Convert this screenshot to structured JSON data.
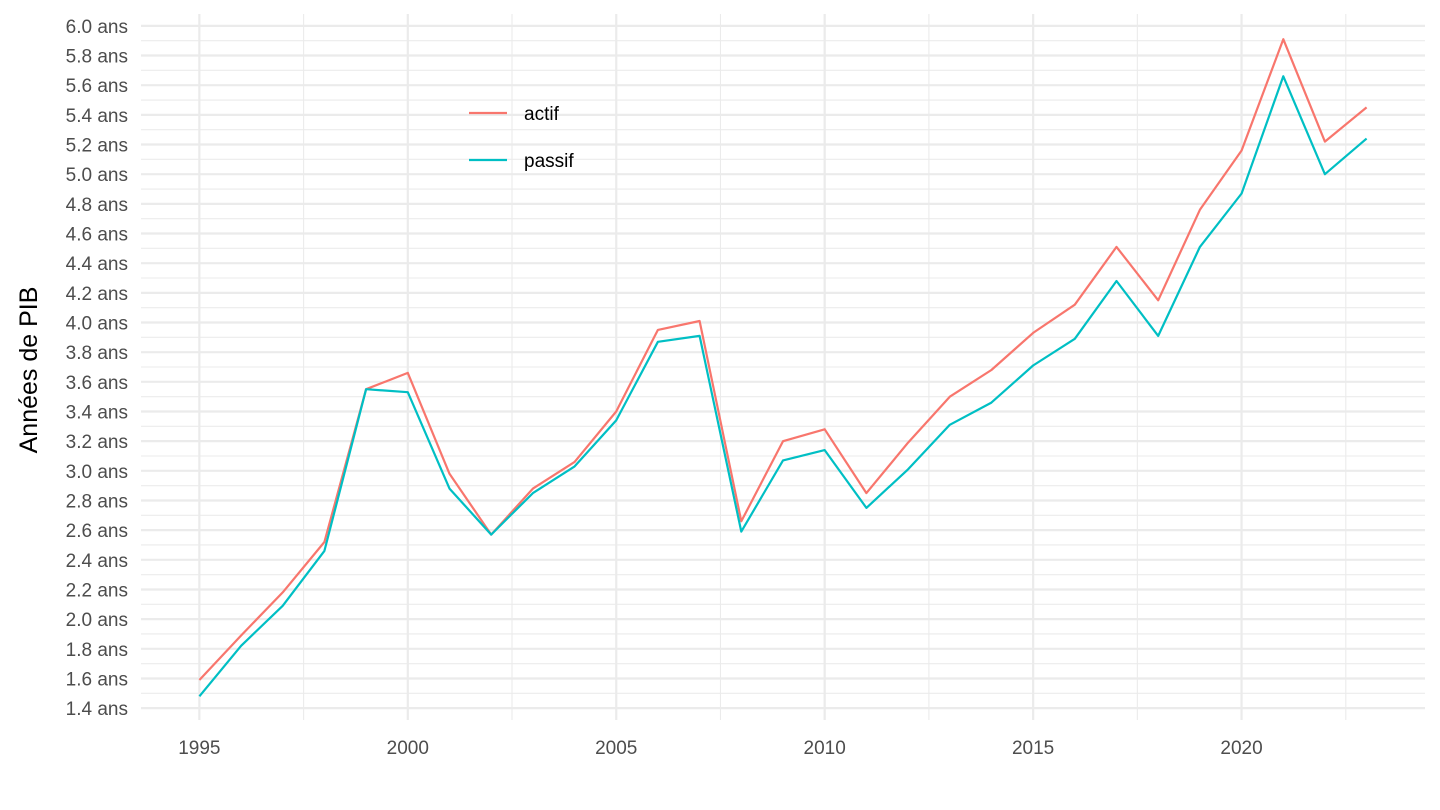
{
  "chart_data": {
    "type": "line",
    "ylabel": "Années de PIB",
    "xlabel": "",
    "x": [
      1995,
      1996,
      1997,
      1998,
      1999,
      2000,
      2001,
      2002,
      2003,
      2004,
      2005,
      2006,
      2007,
      2008,
      2009,
      2010,
      2011,
      2012,
      2013,
      2014,
      2015,
      2016,
      2017,
      2018,
      2019,
      2020,
      2021,
      2022,
      2023
    ],
    "series": [
      {
        "name": "actif",
        "color": "#F8766D",
        "values": [
          1.59,
          1.89,
          2.18,
          2.52,
          3.55,
          3.66,
          2.98,
          2.57,
          2.88,
          3.06,
          3.4,
          3.95,
          4.01,
          2.66,
          3.2,
          3.28,
          2.85,
          3.19,
          3.5,
          3.68,
          3.93,
          4.12,
          4.51,
          4.15,
          4.76,
          5.16,
          5.91,
          5.22,
          5.45
        ]
      },
      {
        "name": "passif",
        "color": "#00BFC4",
        "values": [
          1.48,
          1.82,
          2.09,
          2.46,
          3.55,
          3.53,
          2.88,
          2.57,
          2.85,
          3.03,
          3.34,
          3.87,
          3.91,
          2.59,
          3.07,
          3.14,
          2.75,
          3.01,
          3.31,
          3.46,
          3.71,
          3.89,
          4.28,
          3.91,
          4.51,
          4.87,
          5.66,
          5.0,
          5.24
        ]
      }
    ],
    "xlim": [
      1993.6,
      2024.4
    ],
    "ylim": [
      1.32,
      6.08
    ],
    "x_ticks": [
      {
        "value": 1995,
        "label": "1995"
      },
      {
        "value": 2000,
        "label": "2000"
      },
      {
        "value": 2005,
        "label": "2005"
      },
      {
        "value": 2010,
        "label": "2010"
      },
      {
        "value": 2015,
        "label": "2015"
      },
      {
        "value": 2020,
        "label": "2020"
      }
    ],
    "y_ticks": [
      {
        "value": 1.4,
        "label": "1.4 ans"
      },
      {
        "value": 1.6,
        "label": "1.6 ans"
      },
      {
        "value": 1.8,
        "label": "1.8 ans"
      },
      {
        "value": 2.0,
        "label": "2.0 ans"
      },
      {
        "value": 2.2,
        "label": "2.2 ans"
      },
      {
        "value": 2.4,
        "label": "2.4 ans"
      },
      {
        "value": 2.6,
        "label": "2.6 ans"
      },
      {
        "value": 2.8,
        "label": "2.8 ans"
      },
      {
        "value": 3.0,
        "label": "3.0 ans"
      },
      {
        "value": 3.2,
        "label": "3.2 ans"
      },
      {
        "value": 3.4,
        "label": "3.4 ans"
      },
      {
        "value": 3.6,
        "label": "3.6 ans"
      },
      {
        "value": 3.8,
        "label": "3.8 ans"
      },
      {
        "value": 4.0,
        "label": "4.0 ans"
      },
      {
        "value": 4.2,
        "label": "4.2 ans"
      },
      {
        "value": 4.4,
        "label": "4.4 ans"
      },
      {
        "value": 4.6,
        "label": "4.6 ans"
      },
      {
        "value": 4.8,
        "label": "4.8 ans"
      },
      {
        "value": 5.0,
        "label": "5.0 ans"
      },
      {
        "value": 5.2,
        "label": "5.2 ans"
      },
      {
        "value": 5.4,
        "label": "5.4 ans"
      },
      {
        "value": 5.6,
        "label": "5.6 ans"
      },
      {
        "value": 5.8,
        "label": "5.8 ans"
      },
      {
        "value": 6.0,
        "label": "6.0 ans"
      }
    ],
    "grid": true,
    "legend_position": "top-left inside"
  }
}
